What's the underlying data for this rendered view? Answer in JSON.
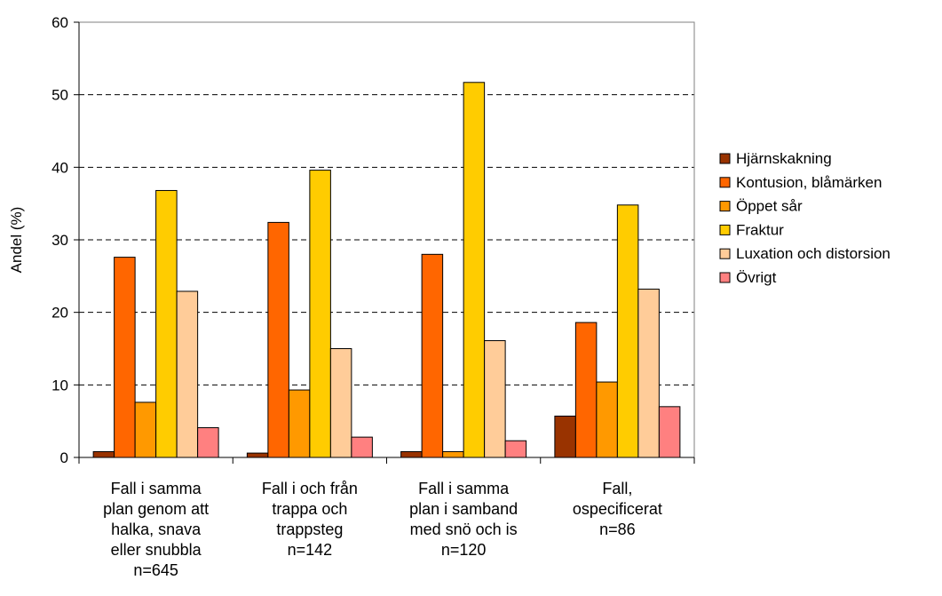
{
  "chart_data": {
    "type": "bar",
    "title": "",
    "xlabel": "",
    "ylabel": "Andel (%)",
    "ylim": [
      0,
      60
    ],
    "yticks": [
      0,
      10,
      20,
      30,
      40,
      50,
      60
    ],
    "grid": true,
    "legend_position": "right",
    "categories": [
      [
        "Fall i samma",
        "plan genom att",
        "halka, snava",
        "eller snubbla",
        "n=645"
      ],
      [
        "Fall i och från",
        "trappa och",
        "trappsteg",
        "n=142"
      ],
      [
        "Fall i samma",
        "plan i samband",
        "med snö och is",
        "n=120"
      ],
      [
        "Fall,",
        "ospecificerat",
        "n=86"
      ]
    ],
    "series": [
      {
        "name": "Hjärnskakning",
        "color": "#993300",
        "values": [
          0.8,
          0.6,
          0.8,
          5.7
        ]
      },
      {
        "name": "Kontusion, blåmärken",
        "color": "#FF6600",
        "values": [
          27.6,
          32.4,
          28.0,
          18.6
        ]
      },
      {
        "name": "Öppet sår",
        "color": "#FF9900",
        "values": [
          7.6,
          9.3,
          0.8,
          10.4
        ]
      },
      {
        "name": "Fraktur",
        "color": "#FFCC00",
        "values": [
          36.8,
          39.6,
          51.7,
          34.8
        ]
      },
      {
        "name": "Luxation och distorsion",
        "color": "#FFCC99",
        "values": [
          22.9,
          15.0,
          16.1,
          23.2
        ]
      },
      {
        "name": "Övrigt",
        "color": "#FF8080",
        "values": [
          4.1,
          2.8,
          2.3,
          7.0
        ]
      }
    ]
  }
}
